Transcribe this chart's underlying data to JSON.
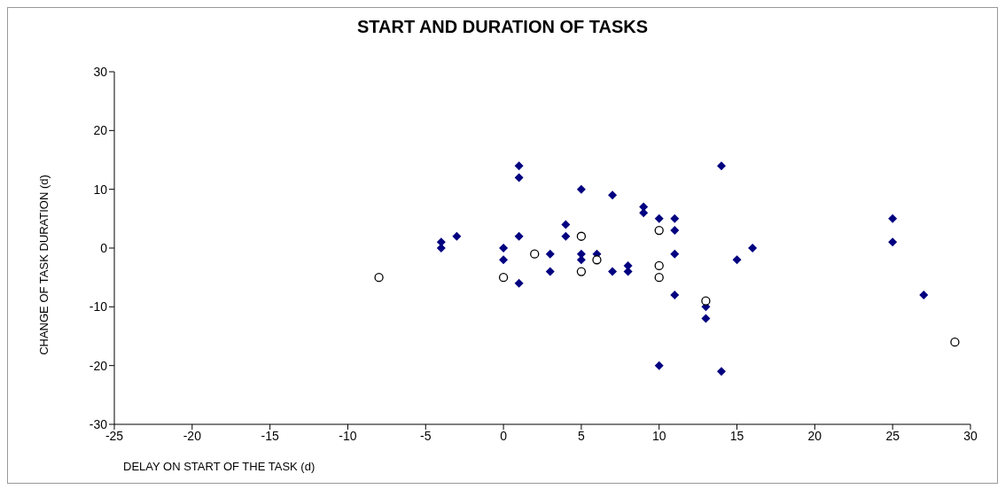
{
  "chart_data": {
    "type": "scatter",
    "title": "START AND DURATION OF TASKS",
    "xlabel": "DELAY ON START OF THE TASK (d)",
    "ylabel": "CHANGE OF TASK DURATION (d)",
    "xlim": [
      -25,
      30
    ],
    "xticks": [
      -25,
      -20,
      -15,
      -10,
      -5,
      0,
      5,
      10,
      15,
      20,
      25,
      30
    ],
    "ylim": [
      -30,
      30
    ],
    "yticks": [
      -30,
      -20,
      -10,
      0,
      10,
      20,
      30
    ],
    "grid": false,
    "legend": false,
    "series": [
      {
        "color": "#000080",
        "marker": "diamond",
        "x": [
          -4,
          -4,
          -3,
          0,
          0,
          1,
          1,
          1,
          1,
          3,
          3,
          4,
          4,
          5,
          5,
          5,
          6,
          7,
          7,
          8,
          8,
          9,
          9,
          10,
          10,
          11,
          11,
          11,
          11,
          13,
          13,
          14,
          14,
          15,
          16,
          25,
          25,
          27
        ],
        "values": [
          1,
          0,
          2,
          0,
          -2,
          14,
          12,
          2,
          -6,
          -1,
          -4,
          4,
          2,
          10,
          -1,
          -2,
          -1,
          9,
          -4,
          -3,
          -4,
          7,
          6,
          5,
          -20,
          5,
          3,
          -1,
          -8,
          -10,
          -12,
          14,
          -21,
          -2,
          0,
          5,
          1,
          -8
        ]
      },
      {
        "color": "#000000",
        "marker": "circle",
        "x": [
          -8,
          0,
          2,
          5,
          5,
          6,
          10,
          10,
          10,
          13,
          29
        ],
        "values": [
          -5,
          -5,
          -1,
          2,
          -4,
          -2,
          3,
          -3,
          -5,
          -9,
          -16
        ]
      }
    ]
  }
}
